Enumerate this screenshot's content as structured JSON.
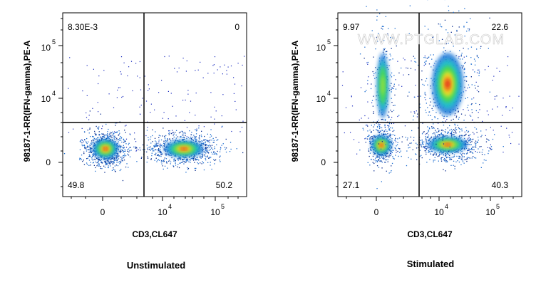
{
  "watermark": "WWW.PTGLAB.COM",
  "chart_data": [
    {
      "type": "scatter",
      "title": "Unstimulated",
      "xlabel": "CD3,CL647",
      "ylabel": "98187-1-RR(IFN-gamma),PE-A",
      "x_ticks": [
        {
          "label": "0",
          "exp": ""
        },
        {
          "label": "10",
          "exp": "4"
        },
        {
          "label": "10",
          "exp": "5"
        }
      ],
      "y_ticks": [
        {
          "label": "0",
          "exp": ""
        },
        {
          "label": "10",
          "exp": "4"
        },
        {
          "label": "10",
          "exp": "5"
        }
      ],
      "quadrant_values": {
        "upper_left": "8.30E-3",
        "upper_right": "0",
        "lower_left": "49.8",
        "lower_right": "50.2"
      },
      "populations": [
        {
          "name": "CD3-negative IFN-gamma-negative",
          "x": 0,
          "y": 0,
          "percent": 49.8
        },
        {
          "name": "CD3-positive IFN-gamma-negative",
          "x": 30000,
          "y": 0,
          "percent": 50.2
        }
      ]
    },
    {
      "type": "scatter",
      "title": "Stimulated",
      "xlabel": "CD3,CL647",
      "ylabel": "98187-1-RR(IFN-gamma),PE-A",
      "x_ticks": [
        {
          "label": "0",
          "exp": ""
        },
        {
          "label": "10",
          "exp": "4"
        },
        {
          "label": "10",
          "exp": "5"
        }
      ],
      "y_ticks": [
        {
          "label": "0",
          "exp": ""
        },
        {
          "label": "10",
          "exp": "4"
        },
        {
          "label": "10",
          "exp": "5"
        }
      ],
      "quadrant_values": {
        "upper_left": "9.97",
        "upper_right": "22.6",
        "lower_left": "27.1",
        "lower_right": "40.3"
      },
      "populations": [
        {
          "name": "CD3-negative IFN-gamma-negative",
          "x": 0,
          "y": 0,
          "percent": 27.1
        },
        {
          "name": "CD3-positive IFN-gamma-negative",
          "x": 15000,
          "y": 0,
          "percent": 40.3
        },
        {
          "name": "CD3-negative IFN-gamma-positive",
          "x": 0,
          "y": 10000,
          "percent": 9.97
        },
        {
          "name": "CD3-positive IFN-gamma-positive",
          "x": 15000,
          "y": 10000,
          "percent": 22.6
        }
      ]
    }
  ]
}
